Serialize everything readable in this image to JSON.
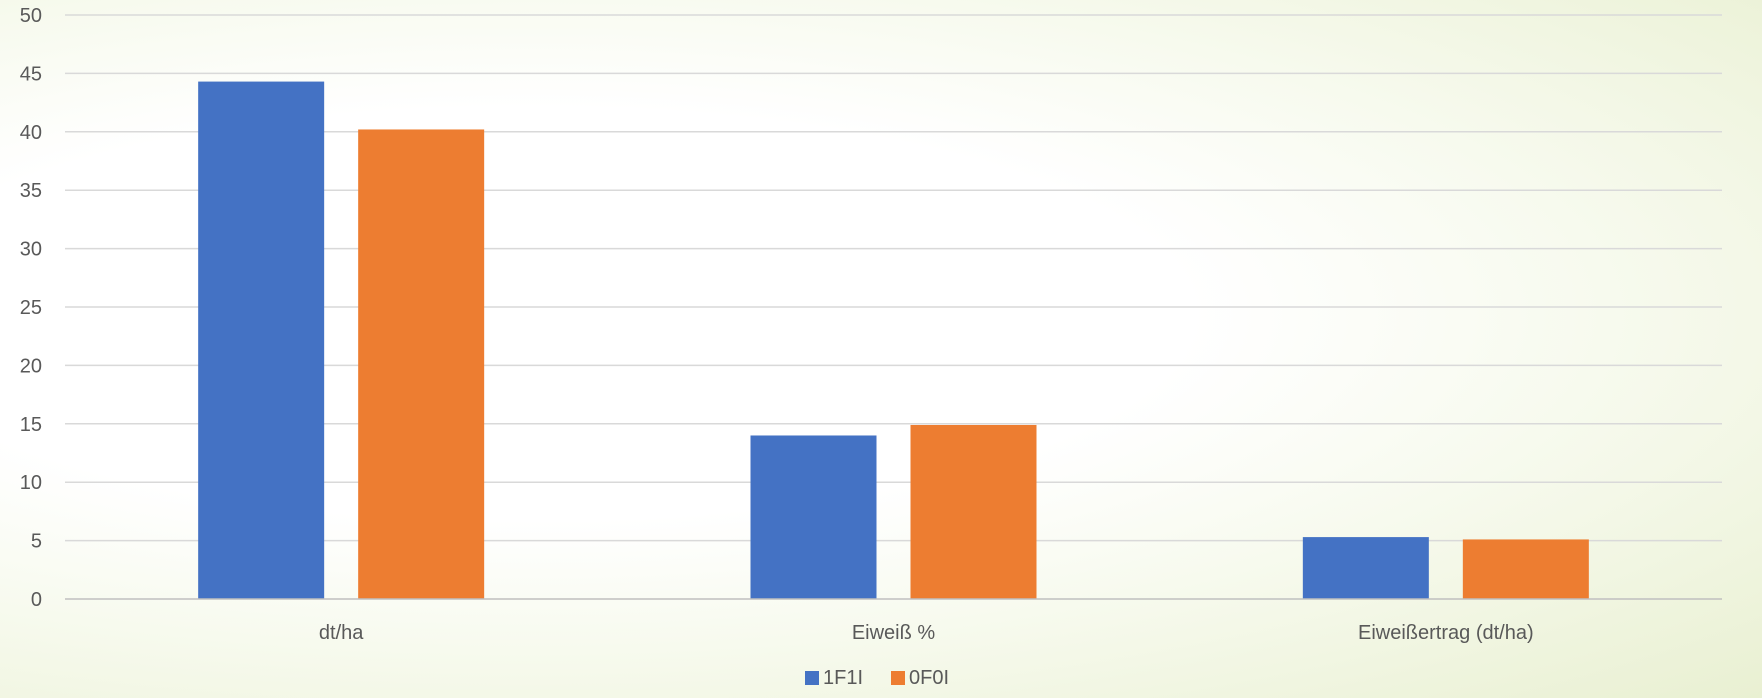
{
  "chart_data": {
    "type": "bar",
    "title": "",
    "xlabel": "",
    "ylabel": "",
    "categories": [
      "dt/ha",
      "Eiweiß %",
      "Eiweißertrag (dt/ha)"
    ],
    "series": [
      {
        "name": "1F1I",
        "color": "#4472c4",
        "values": [
          44.3,
          14.0,
          5.3
        ]
      },
      {
        "name": "0F0I",
        "color": "#ed7d31",
        "values": [
          40.2,
          14.9,
          5.1
        ]
      }
    ],
    "ylim": [
      0,
      50
    ],
    "yticks": [
      "0",
      "5",
      "10",
      "15",
      "20",
      "25",
      "30",
      "35",
      "40",
      "45",
      "50"
    ],
    "grid": true,
    "legend_position": "bottom"
  }
}
